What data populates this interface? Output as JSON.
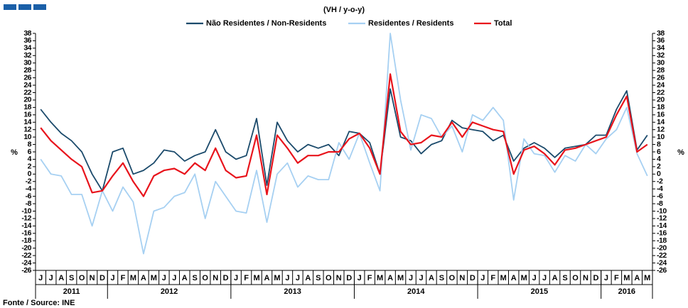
{
  "chart_data": {
    "type": "line",
    "subtitle": "(VH / y-o-y)",
    "ylabel": "%",
    "source": "Fonte / Source: INE",
    "categories": [
      "J",
      "J",
      "A",
      "S",
      "O",
      "N",
      "D",
      "J",
      "F",
      "M",
      "A",
      "M",
      "J",
      "J",
      "A",
      "S",
      "O",
      "N",
      "D",
      "J",
      "F",
      "M",
      "A",
      "M",
      "J",
      "J",
      "A",
      "S",
      "O",
      "N",
      "D",
      "J",
      "F",
      "M",
      "A",
      "M",
      "J",
      "J",
      "A",
      "S",
      "O",
      "N",
      "D",
      "J",
      "F",
      "M",
      "A",
      "M",
      "J",
      "J",
      "A",
      "S",
      "O",
      "N",
      "D",
      "J",
      "F",
      "M",
      "A",
      "M"
    ],
    "x_groups": [
      {
        "label": "2011",
        "count": 7
      },
      {
        "label": "2012",
        "count": 12
      },
      {
        "label": "2013",
        "count": 12
      },
      {
        "label": "2014",
        "count": 12
      },
      {
        "label": "2015",
        "count": 12
      },
      {
        "label": "2016",
        "count": 5
      }
    ],
    "series": [
      {
        "name": "Não Residentes / Non-Residents",
        "color": "#1b4a6b",
        "values": [
          17.5,
          14,
          11,
          9,
          6,
          0,
          -4.5,
          6,
          7,
          0,
          1,
          3,
          6.5,
          6,
          3.5,
          5,
          6,
          12,
          6,
          4,
          5,
          15,
          -3,
          14,
          9,
          6,
          8,
          7,
          8,
          5,
          11.5,
          11,
          8.5,
          0,
          23,
          10,
          9,
          5.5,
          8,
          9,
          14.5,
          12.5,
          12,
          11.5,
          9,
          10.5,
          3.5,
          7,
          8.5,
          7,
          4.5,
          7,
          7.5,
          8,
          10.5,
          10.5,
          17.5,
          22.5,
          6.5,
          10.5
        ]
      },
      {
        "name": "Residentes / Residents",
        "color": "#a6d0f2",
        "values": [
          4,
          0,
          -0.5,
          -5.5,
          -5.5,
          -14,
          -4.5,
          -10,
          -3.5,
          -7.5,
          -21.5,
          -10,
          -9,
          -6,
          -5,
          0,
          -12,
          -2,
          -6,
          -10,
          -10.5,
          1,
          -13,
          0,
          3,
          -3.5,
          -0.5,
          -1.5,
          -1.5,
          8.5,
          4,
          11,
          3,
          -4.5,
          38,
          20,
          6.5,
          16,
          15,
          10,
          13,
          6,
          16,
          14.5,
          18,
          14.5,
          -7,
          9.5,
          5.5,
          5,
          0.5,
          5,
          3.5,
          8,
          5.5,
          9.5,
          12,
          18,
          5.5,
          -0.5
        ]
      },
      {
        "name": "Total",
        "color": "#e8141c",
        "values": [
          12.5,
          9,
          6.5,
          4,
          2,
          -5,
          -4.5,
          -0.5,
          3,
          -2,
          -6,
          -0.5,
          1,
          1.5,
          0,
          3,
          1,
          7,
          1,
          -1,
          -0.5,
          10.5,
          -5.5,
          10.5,
          7,
          3,
          5,
          5,
          6,
          6,
          9.5,
          11,
          7,
          0,
          27,
          11.5,
          8,
          8.5,
          10.5,
          10,
          14,
          10,
          14,
          13,
          12,
          11.5,
          0,
          6.5,
          7.5,
          5.5,
          2.5,
          6.5,
          7,
          8,
          9,
          10,
          16,
          21,
          6,
          8
        ]
      }
    ],
    "ylim": [
      -26,
      38
    ],
    "yticks": [
      -26,
      -24,
      -22,
      -20,
      -18,
      -16,
      -14,
      -12,
      -10,
      -8,
      -6,
      -4,
      -2,
      0,
      2,
      4,
      6,
      8,
      10,
      12,
      14,
      16,
      18,
      20,
      22,
      24,
      26,
      28,
      30,
      32,
      34,
      36,
      38
    ],
    "grid": false,
    "legend": "top"
  }
}
